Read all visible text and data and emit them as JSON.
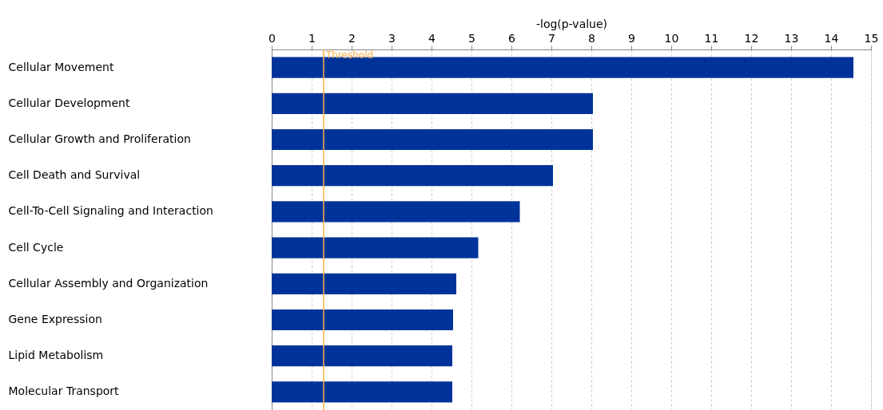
{
  "chart_data": {
    "type": "bar",
    "orientation": "horizontal",
    "xlabel": "-log(p-value)",
    "categories": [
      "Cellular Movement",
      "Cellular Development",
      "Cellular Growth and Proliferation",
      "Cell Death and Survival",
      "Cell-To-Cell Signaling and Interaction",
      "Cell Cycle",
      "Cellular Assembly and Organization",
      "Gene Expression",
      "Lipid Metabolism",
      "Molecular Transport"
    ],
    "values": [
      14.56,
      8.04,
      8.04,
      7.04,
      6.21,
      5.17,
      4.62,
      4.54,
      4.52,
      4.52
    ],
    "color": "#003399",
    "xlim": [
      0,
      15
    ],
    "xticks": [
      0,
      1,
      2,
      3,
      4,
      5,
      6,
      7,
      8,
      9,
      10,
      11,
      12,
      13,
      14,
      15
    ],
    "grid": "x",
    "ref_lines": [
      {
        "axis": "x",
        "value": 1.3,
        "label": "Threshold",
        "color": "#ffb347"
      }
    ]
  }
}
